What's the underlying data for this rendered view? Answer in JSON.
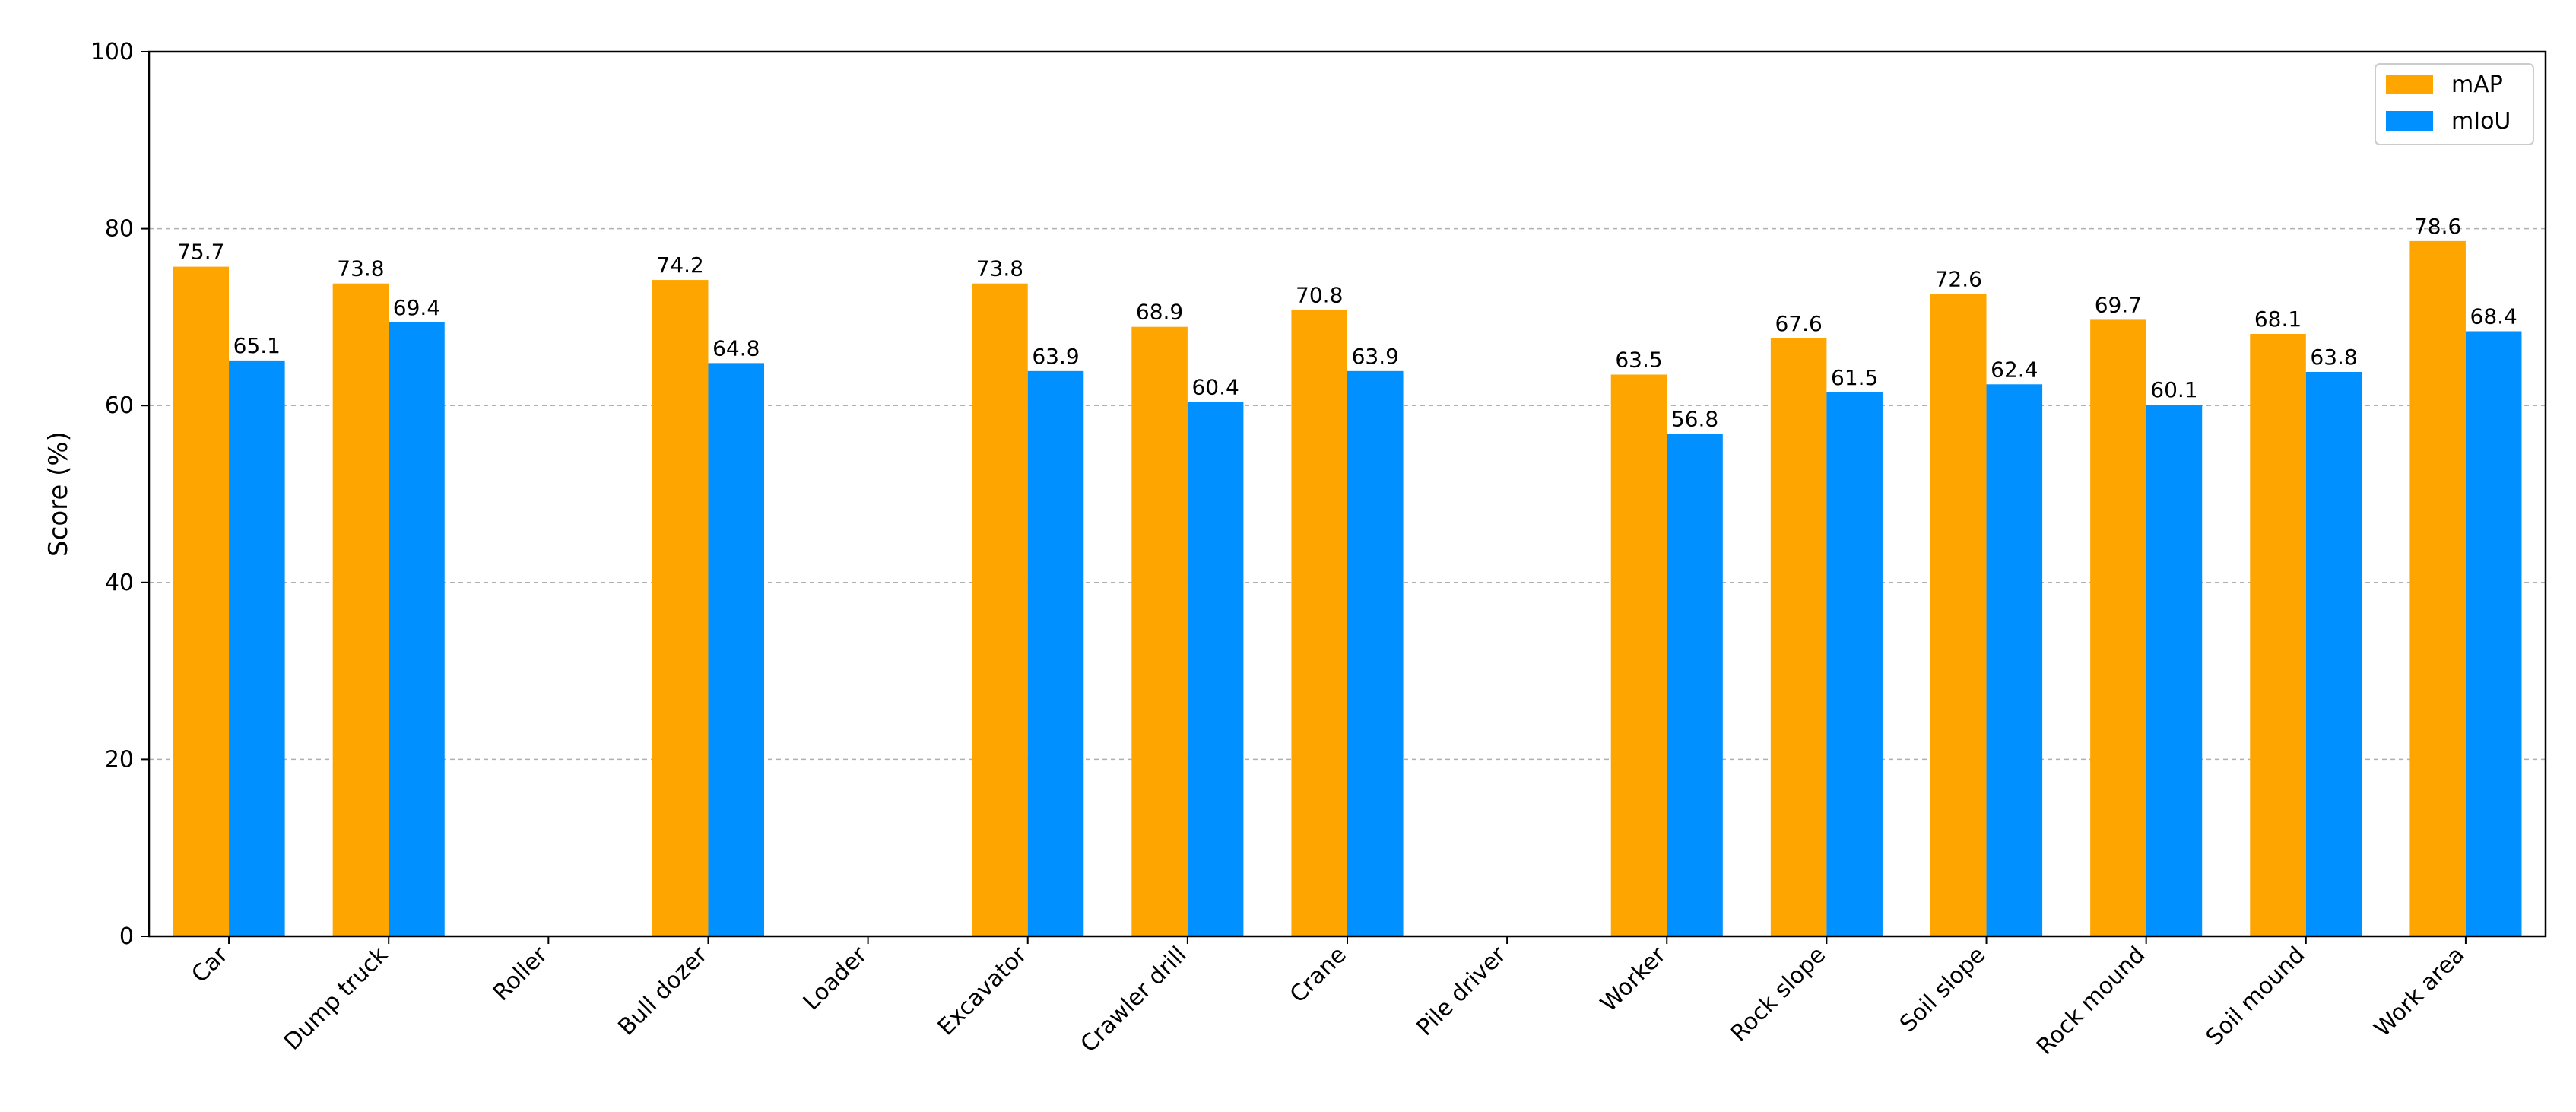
{
  "chart_data": {
    "type": "bar",
    "categories": [
      "Car",
      "Dump truck",
      "Roller",
      "Bull dozer",
      "Loader",
      "Excavator",
      "Crawler drill",
      "Crane",
      "Pile driver",
      "Worker",
      "Rock slope",
      "Soil slope",
      "Rock mound",
      "Soil mound",
      "Work area"
    ],
    "series": [
      {
        "name": "mAP",
        "color": "#FFA500",
        "values": [
          75.7,
          73.8,
          null,
          74.2,
          null,
          73.8,
          68.9,
          70.8,
          null,
          63.5,
          67.6,
          72.6,
          69.7,
          68.1,
          78.6
        ]
      },
      {
        "name": "mIoU",
        "color": "#0090FF",
        "values": [
          65.1,
          69.4,
          null,
          64.8,
          null,
          63.9,
          60.4,
          63.9,
          null,
          56.8,
          61.5,
          62.4,
          60.1,
          63.8,
          68.4
        ]
      }
    ],
    "ylabel": "Score (%)",
    "xlabel": "",
    "ylim": [
      0,
      100
    ],
    "yticks": [
      0,
      20,
      40,
      60,
      80,
      100
    ],
    "grid": "horizontal dashed",
    "legend_position": "top-right"
  }
}
